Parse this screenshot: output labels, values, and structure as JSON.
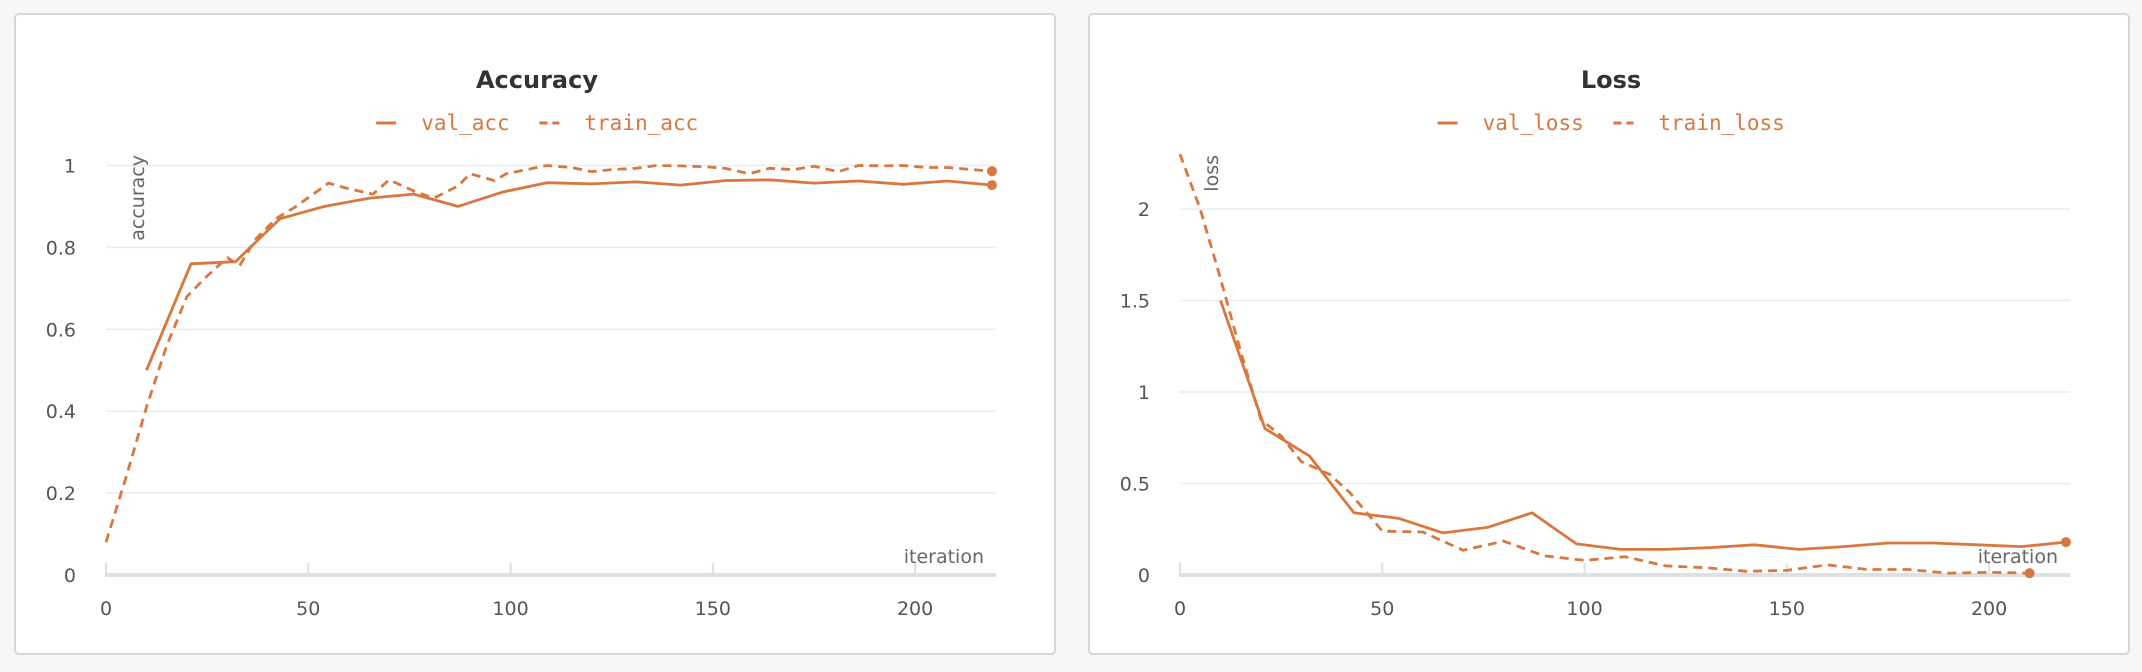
{
  "colors": {
    "series": "#d9773f",
    "panel_border": "#d6d6d6",
    "background": "#f7f7f7"
  },
  "chart_data": [
    {
      "type": "line",
      "title": "Accuracy",
      "xlabel": "iteration",
      "ylabel": "accuracy",
      "xlim": [
        0,
        220
      ],
      "ylim": [
        0,
        1.05
      ],
      "xticks": [
        0,
        50,
        100,
        150,
        200
      ],
      "yticks": [
        0,
        0.2,
        0.4,
        0.6,
        0.8,
        1
      ],
      "ytick_labels": [
        "0",
        "0.2",
        "0.4",
        "0.6",
        "0.8",
        "1"
      ],
      "grid": true,
      "legend_position": "top-center",
      "series": [
        {
          "name": "val_acc",
          "style": "solid",
          "x": [
            10,
            21,
            32,
            43,
            54,
            65,
            76,
            87,
            98,
            109,
            120,
            131,
            142,
            153,
            164,
            175,
            186,
            197,
            208,
            219
          ],
          "y": [
            0.5,
            0.76,
            0.765,
            0.87,
            0.9,
            0.92,
            0.93,
            0.9,
            0.935,
            0.958,
            0.955,
            0.96,
            0.952,
            0.963,
            0.965,
            0.957,
            0.962,
            0.954,
            0.962,
            0.952
          ]
        },
        {
          "name": "train_acc",
          "style": "dashed",
          "x": [
            0,
            5,
            10,
            15,
            20,
            25,
            30,
            33,
            37,
            42,
            47,
            55,
            60,
            66,
            70,
            76,
            81,
            87,
            90,
            96,
            99,
            104,
            109,
            115,
            120,
            125,
            131,
            136,
            142,
            148,
            153,
            159,
            164,
            170,
            175,
            181,
            186,
            192,
            197,
            203,
            208,
            214,
            219
          ],
          "y": [
            0.08,
            0.24,
            0.41,
            0.56,
            0.68,
            0.73,
            0.775,
            0.755,
            0.82,
            0.87,
            0.9,
            0.957,
            0.943,
            0.93,
            0.965,
            0.938,
            0.92,
            0.95,
            0.98,
            0.963,
            0.98,
            0.99,
            1.0,
            0.995,
            0.985,
            0.99,
            0.993,
            1.0,
            0.999,
            0.997,
            0.993,
            0.98,
            0.993,
            0.99,
            0.998,
            0.985,
            1.0,
            0.999,
            1.0,
            0.995,
            0.995,
            0.99,
            0.986
          ]
        }
      ]
    },
    {
      "type": "line",
      "title": "Loss",
      "xlabel": "iteration",
      "ylabel": "loss",
      "xlim": [
        0,
        220
      ],
      "ylim": [
        0,
        2.35
      ],
      "xticks": [
        0,
        50,
        100,
        150,
        200
      ],
      "yticks": [
        0,
        0.5,
        1,
        1.5,
        2
      ],
      "ytick_labels": [
        "0",
        "0.5",
        "1",
        "1.5",
        "2"
      ],
      "grid": true,
      "legend_position": "top-center",
      "series": [
        {
          "name": "val_loss",
          "style": "solid",
          "x": [
            10,
            21,
            32,
            43,
            54,
            65,
            76,
            87,
            98,
            109,
            120,
            131,
            142,
            153,
            164,
            175,
            186,
            197,
            208,
            219
          ],
          "y": [
            1.5,
            0.8,
            0.65,
            0.34,
            0.31,
            0.23,
            0.26,
            0.34,
            0.17,
            0.14,
            0.14,
            0.15,
            0.165,
            0.14,
            0.155,
            0.175,
            0.175,
            0.165,
            0.155,
            0.18
          ]
        },
        {
          "name": "train_loss",
          "style": "dashed",
          "x": [
            0,
            5,
            10,
            15,
            20,
            25,
            30,
            37,
            42,
            50,
            60,
            70,
            80,
            90,
            100,
            110,
            120,
            130,
            140,
            150,
            160,
            170,
            180,
            190,
            200,
            210
          ],
          "y": [
            2.3,
            2.0,
            1.62,
            1.22,
            0.85,
            0.76,
            0.62,
            0.55,
            0.45,
            0.24,
            0.235,
            0.135,
            0.185,
            0.105,
            0.08,
            0.1,
            0.05,
            0.04,
            0.02,
            0.025,
            0.055,
            0.03,
            0.03,
            0.01,
            0.015,
            0.01
          ]
        }
      ]
    }
  ]
}
